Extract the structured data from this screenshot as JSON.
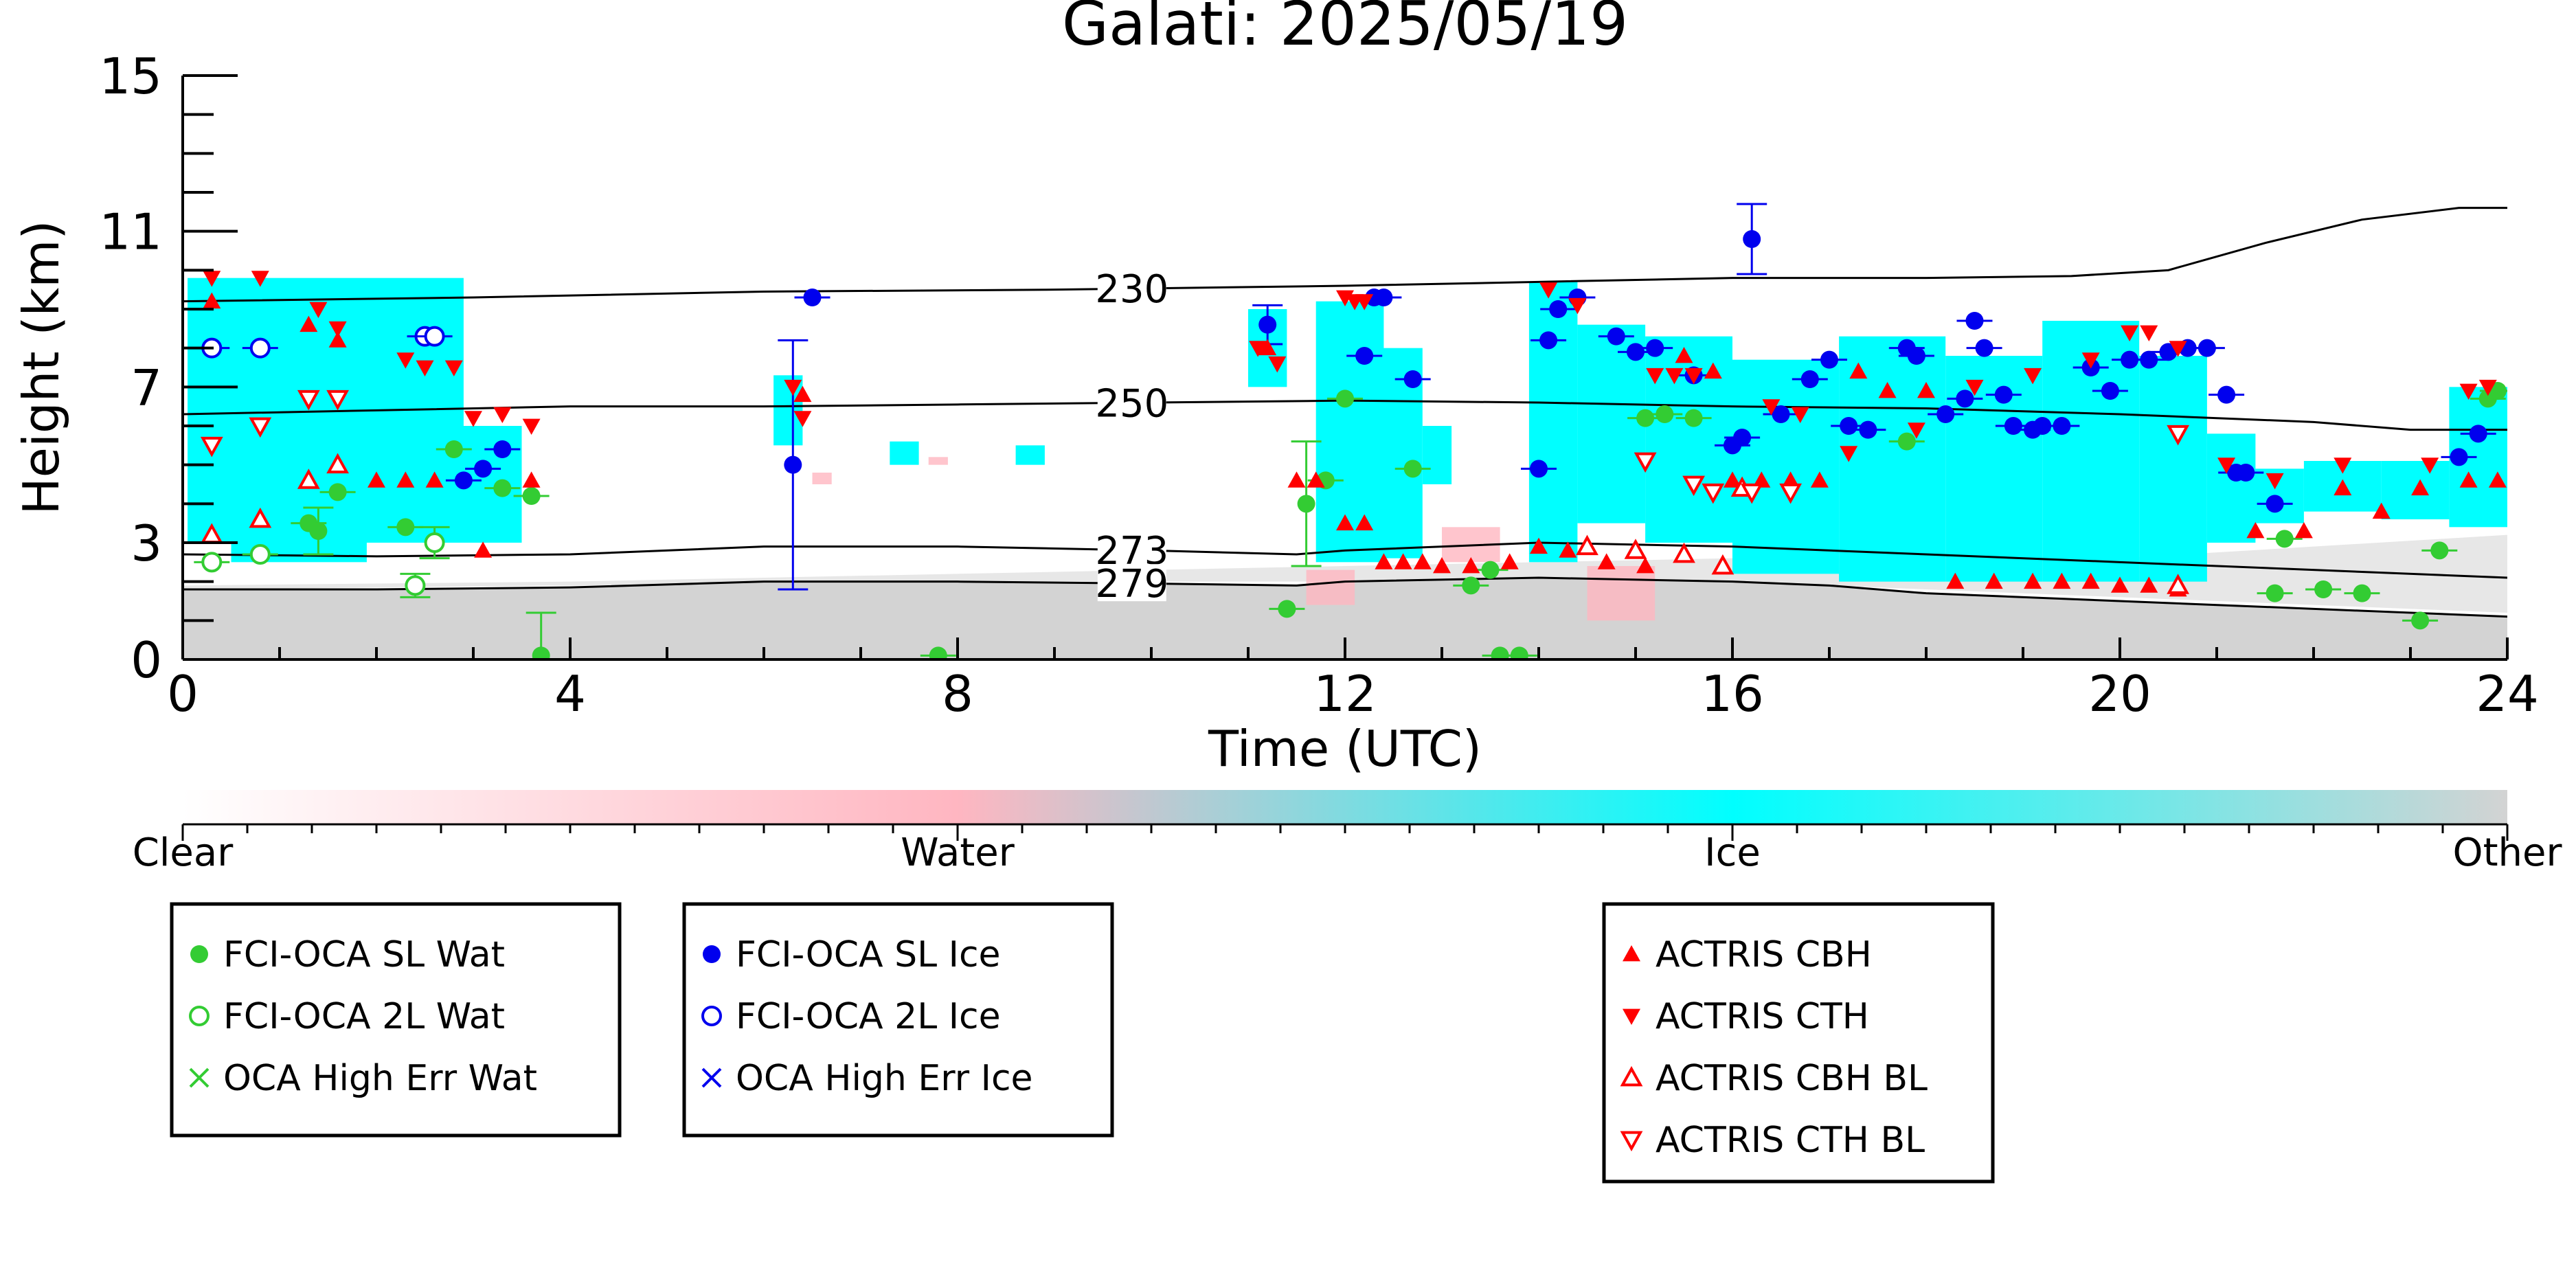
{
  "chart_data": {
    "type": "scatter",
    "title": "Galati: 2025/05/19",
    "xlabel": "Time (UTC)",
    "ylabel": "Height (km)",
    "xlim": [
      0,
      24
    ],
    "ylim": [
      0,
      15
    ],
    "xticks": [
      0,
      4,
      8,
      12,
      16,
      20,
      24
    ],
    "yticks": [
      0,
      3,
      7,
      11,
      15
    ],
    "colorbar": {
      "labels": [
        "Clear",
        "Water",
        "Ice",
        "Other"
      ],
      "colors": {
        "clear": "#ffffff",
        "water": "#ffb6c1",
        "ice": "#00ffff",
        "other": "#d3d3d3"
      }
    },
    "isotherms": [
      {
        "label": "230",
        "points": [
          [
            0,
            9.2
          ],
          [
            3,
            9.3
          ],
          [
            6,
            9.45
          ],
          [
            9,
            9.5
          ],
          [
            12,
            9.6
          ],
          [
            14,
            9.7
          ],
          [
            16,
            9.8
          ],
          [
            18,
            9.8
          ],
          [
            19.5,
            9.85
          ],
          [
            20.5,
            10.0
          ],
          [
            21.5,
            10.7
          ],
          [
            22.5,
            11.3
          ],
          [
            23.5,
            11.6
          ],
          [
            24,
            11.6
          ]
        ]
      },
      {
        "label": "250",
        "points": [
          [
            0,
            6.3
          ],
          [
            2,
            6.4
          ],
          [
            4,
            6.5
          ],
          [
            6,
            6.5
          ],
          [
            8,
            6.55
          ],
          [
            10,
            6.6
          ],
          [
            12,
            6.65
          ],
          [
            14,
            6.6
          ],
          [
            16,
            6.5
          ],
          [
            18,
            6.45
          ],
          [
            20,
            6.3
          ],
          [
            22,
            6.1
          ],
          [
            23,
            5.9
          ],
          [
            24,
            5.9
          ]
        ]
      },
      {
        "label": "273",
        "points": [
          [
            0,
            2.7
          ],
          [
            2,
            2.65
          ],
          [
            4,
            2.7
          ],
          [
            6,
            2.9
          ],
          [
            8,
            2.9
          ],
          [
            10,
            2.8
          ],
          [
            11.5,
            2.7
          ],
          [
            12,
            2.8
          ],
          [
            14,
            3.0
          ],
          [
            16,
            2.9
          ],
          [
            18,
            2.7
          ],
          [
            20,
            2.5
          ],
          [
            22,
            2.3
          ],
          [
            24,
            2.1
          ]
        ]
      },
      {
        "label": "279",
        "points": [
          [
            0,
            1.8
          ],
          [
            2,
            1.8
          ],
          [
            4,
            1.85
          ],
          [
            6,
            2.0
          ],
          [
            8,
            2.0
          ],
          [
            10,
            1.95
          ],
          [
            11.5,
            1.9
          ],
          [
            12,
            2.0
          ],
          [
            14,
            2.1
          ],
          [
            16,
            2.0
          ],
          [
            17,
            1.9
          ],
          [
            18,
            1.7
          ],
          [
            20,
            1.5
          ],
          [
            22,
            1.3
          ],
          [
            24,
            1.1
          ]
        ]
      }
    ],
    "series": [
      {
        "name": "FCI-OCA SL Wat",
        "color": "#33cc33",
        "marker": "circle-filled",
        "points": [
          [
            1.3,
            3.5,
            0
          ],
          [
            1.4,
            3.3,
            0.6
          ],
          [
            1.6,
            4.3,
            0
          ],
          [
            2.3,
            3.4,
            0
          ],
          [
            2.8,
            5.4,
            0
          ],
          [
            3.3,
            4.4,
            0
          ],
          [
            3.6,
            4.2,
            0
          ],
          [
            3.7,
            0.1,
            1.1
          ],
          [
            7.8,
            0.1,
            0
          ],
          [
            11.4,
            1.3,
            0
          ],
          [
            11.6,
            4.0,
            1.6
          ],
          [
            11.8,
            4.6,
            0
          ],
          [
            12.0,
            6.7,
            0
          ],
          [
            12.7,
            4.9,
            0
          ],
          [
            13.3,
            1.9,
            0
          ],
          [
            13.5,
            2.3,
            0
          ],
          [
            13.6,
            0.1,
            0
          ],
          [
            13.8,
            0.1,
            0
          ],
          [
            15.1,
            6.2,
            0
          ],
          [
            15.3,
            6.3,
            0
          ],
          [
            15.6,
            6.2,
            0
          ],
          [
            17.8,
            5.6,
            0
          ],
          [
            21.6,
            1.7,
            0
          ],
          [
            21.7,
            3.1,
            0
          ],
          [
            22.1,
            1.8,
            0
          ],
          [
            22.5,
            1.7,
            0
          ],
          [
            23.1,
            1.0,
            0
          ],
          [
            23.3,
            2.8,
            0
          ],
          [
            23.8,
            6.7,
            0
          ],
          [
            23.9,
            6.9,
            0
          ]
        ]
      },
      {
        "name": "FCI-OCA 2L Wat",
        "color": "#33cc33",
        "marker": "circle-open",
        "points": [
          [
            0.3,
            2.5,
            0
          ],
          [
            0.8,
            2.7,
            0
          ],
          [
            2.4,
            1.9,
            0.3
          ],
          [
            2.6,
            3.0,
            0.4
          ]
        ]
      },
      {
        "name": "OCA High Err Wat",
        "color": "#33cc33",
        "marker": "x",
        "points": []
      },
      {
        "name": "FCI-OCA SL Ice",
        "color": "#0000ee",
        "marker": "circle-filled",
        "points": [
          [
            2.9,
            4.6,
            0
          ],
          [
            3.1,
            4.9,
            0
          ],
          [
            3.3,
            5.4,
            0
          ],
          [
            6.3,
            5.0,
            3.2
          ],
          [
            6.5,
            9.3,
            0
          ],
          [
            11.2,
            8.6,
            0.5
          ],
          [
            12.3,
            9.3,
            0
          ],
          [
            12.4,
            9.3,
            0
          ],
          [
            12.2,
            7.8,
            0
          ],
          [
            12.7,
            7.2,
            0
          ],
          [
            14.0,
            4.9,
            0
          ],
          [
            14.1,
            8.2,
            0
          ],
          [
            14.2,
            9.0,
            0
          ],
          [
            14.4,
            9.3,
            0
          ],
          [
            14.8,
            8.3,
            0
          ],
          [
            15.0,
            7.9,
            0
          ],
          [
            15.2,
            8.0,
            0
          ],
          [
            15.6,
            7.3,
            0
          ],
          [
            16.0,
            5.5,
            0
          ],
          [
            16.1,
            5.7,
            0
          ],
          [
            16.2,
            10.8,
            0.9
          ],
          [
            16.5,
            6.3,
            0
          ],
          [
            16.8,
            7.2,
            0
          ],
          [
            17.0,
            7.7,
            0
          ],
          [
            17.2,
            6.0,
            0
          ],
          [
            17.4,
            5.9,
            0
          ],
          [
            17.8,
            8.0,
            0
          ],
          [
            17.9,
            7.8,
            0
          ],
          [
            18.2,
            6.3,
            0
          ],
          [
            18.4,
            6.7,
            0
          ],
          [
            18.5,
            8.7,
            0
          ],
          [
            18.6,
            8.0,
            0
          ],
          [
            18.8,
            6.8,
            0
          ],
          [
            18.9,
            6.0,
            0
          ],
          [
            19.1,
            5.9,
            0
          ],
          [
            19.2,
            6.0,
            0
          ],
          [
            19.4,
            6.0,
            0
          ],
          [
            19.7,
            7.5,
            0
          ],
          [
            19.9,
            6.9,
            0
          ],
          [
            20.1,
            7.7,
            0
          ],
          [
            20.3,
            7.7,
            0
          ],
          [
            20.5,
            7.9,
            0
          ],
          [
            20.7,
            8.0,
            0
          ],
          [
            20.9,
            8.0,
            0
          ],
          [
            21.1,
            6.8,
            0
          ],
          [
            21.2,
            4.8,
            0
          ],
          [
            21.3,
            4.8,
            0
          ],
          [
            21.6,
            4.0,
            0
          ],
          [
            23.5,
            5.2,
            0
          ],
          [
            23.7,
            5.8,
            0
          ]
        ]
      },
      {
        "name": "FCI-OCA 2L Ice",
        "color": "#0000ee",
        "marker": "circle-open",
        "points": [
          [
            0.3,
            8.0,
            0
          ],
          [
            0.8,
            8.0,
            0
          ],
          [
            2.5,
            8.3,
            0
          ],
          [
            2.6,
            8.3,
            0
          ]
        ]
      },
      {
        "name": "OCA High Err Ice",
        "color": "#0000ee",
        "marker": "x",
        "points": []
      },
      {
        "name": "ACTRIS CBH",
        "color": "#ff0000",
        "marker": "triangle-up-filled",
        "points": [
          [
            0.3,
            9.2
          ],
          [
            1.3,
            8.6
          ],
          [
            1.6,
            8.2
          ],
          [
            2.0,
            4.6
          ],
          [
            2.3,
            4.6
          ],
          [
            2.6,
            4.6
          ],
          [
            3.1,
            2.8
          ],
          [
            3.6,
            4.6
          ],
          [
            6.4,
            6.8
          ],
          [
            11.2,
            8.0
          ],
          [
            11.5,
            4.6
          ],
          [
            11.7,
            4.6
          ],
          [
            12.0,
            3.5
          ],
          [
            12.2,
            3.5
          ],
          [
            12.4,
            2.5
          ],
          [
            12.6,
            2.5
          ],
          [
            12.8,
            2.5
          ],
          [
            13.0,
            2.4
          ],
          [
            13.3,
            2.4
          ],
          [
            13.7,
            2.5
          ],
          [
            14.0,
            2.9
          ],
          [
            14.3,
            2.8
          ],
          [
            14.7,
            2.5
          ],
          [
            15.1,
            2.4
          ],
          [
            15.5,
            7.8
          ],
          [
            15.8,
            7.4
          ],
          [
            16.0,
            4.6
          ],
          [
            16.3,
            4.6
          ],
          [
            16.6,
            4.6
          ],
          [
            16.9,
            4.6
          ],
          [
            17.3,
            7.4
          ],
          [
            17.6,
            6.9
          ],
          [
            18.0,
            6.9
          ],
          [
            18.3,
            2.0
          ],
          [
            18.7,
            2.0
          ],
          [
            19.1,
            2.0
          ],
          [
            19.4,
            2.0
          ],
          [
            19.7,
            2.0
          ],
          [
            20.0,
            1.9
          ],
          [
            20.3,
            1.9
          ],
          [
            20.6,
            1.8
          ],
          [
            21.4,
            3.3
          ],
          [
            21.9,
            3.3
          ],
          [
            22.3,
            4.4
          ],
          [
            22.7,
            3.8
          ],
          [
            23.1,
            4.4
          ],
          [
            23.6,
            4.6
          ],
          [
            23.9,
            4.6
          ]
        ]
      },
      {
        "name": "ACTRIS CTH",
        "color": "#ff0000",
        "marker": "triangle-down-filled",
        "points": [
          [
            0.3,
            9.8
          ],
          [
            0.8,
            9.8
          ],
          [
            1.4,
            9.0
          ],
          [
            1.6,
            8.5
          ],
          [
            2.3,
            7.7
          ],
          [
            2.5,
            7.5
          ],
          [
            2.8,
            7.5
          ],
          [
            3.0,
            6.2
          ],
          [
            3.3,
            6.3
          ],
          [
            3.6,
            6.0
          ],
          [
            6.3,
            7.0
          ],
          [
            6.4,
            6.2
          ],
          [
            11.1,
            8.0
          ],
          [
            11.3,
            7.6
          ],
          [
            12.0,
            9.3
          ],
          [
            12.1,
            9.2
          ],
          [
            12.2,
            9.2
          ],
          [
            14.1,
            9.5
          ],
          [
            14.4,
            9.1
          ],
          [
            15.2,
            7.3
          ],
          [
            15.4,
            7.3
          ],
          [
            15.6,
            7.3
          ],
          [
            16.4,
            6.5
          ],
          [
            16.7,
            6.3
          ],
          [
            17.2,
            5.3
          ],
          [
            17.9,
            5.9
          ],
          [
            18.5,
            7.0
          ],
          [
            19.1,
            7.3
          ],
          [
            19.7,
            7.7
          ],
          [
            20.1,
            8.4
          ],
          [
            20.3,
            8.4
          ],
          [
            20.6,
            8.0
          ],
          [
            21.1,
            5.0
          ],
          [
            21.6,
            4.6
          ],
          [
            22.3,
            5.0
          ],
          [
            23.2,
            5.0
          ],
          [
            23.6,
            6.9
          ],
          [
            23.8,
            7.0
          ]
        ]
      },
      {
        "name": "ACTRIS CBH BL",
        "color": "#ff0000",
        "marker": "triangle-up-open",
        "points": [
          [
            0.3,
            3.2
          ],
          [
            0.8,
            3.6
          ],
          [
            1.3,
            4.6
          ],
          [
            1.6,
            5.0
          ],
          [
            14.5,
            2.9
          ],
          [
            15.0,
            2.8
          ],
          [
            15.5,
            2.7
          ],
          [
            15.9,
            2.4
          ],
          [
            16.1,
            4.4
          ],
          [
            20.6,
            1.9
          ]
        ]
      },
      {
        "name": "ACTRIS CTH BL",
        "color": "#ff0000",
        "marker": "triangle-down-open",
        "points": [
          [
            0.3,
            5.5
          ],
          [
            0.8,
            6.0
          ],
          [
            1.3,
            6.7
          ],
          [
            1.6,
            6.7
          ],
          [
            15.1,
            5.1
          ],
          [
            15.6,
            4.5
          ],
          [
            15.8,
            4.3
          ],
          [
            16.2,
            4.3
          ],
          [
            16.6,
            4.3
          ],
          [
            20.6,
            5.8
          ]
        ]
      }
    ],
    "legend_groups": [
      [
        "FCI-OCA SL Wat",
        "FCI-OCA 2L Wat",
        "OCA High Err Wat"
      ],
      [
        "FCI-OCA SL Ice",
        "FCI-OCA 2L Ice",
        "OCA High Err Ice"
      ],
      [
        "ACTRIS CBH",
        "ACTRIS CTH",
        "ACTRIS CBH BL",
        "ACTRIS CTH BL"
      ]
    ],
    "grid": false,
    "legend_placement": "bottom"
  }
}
